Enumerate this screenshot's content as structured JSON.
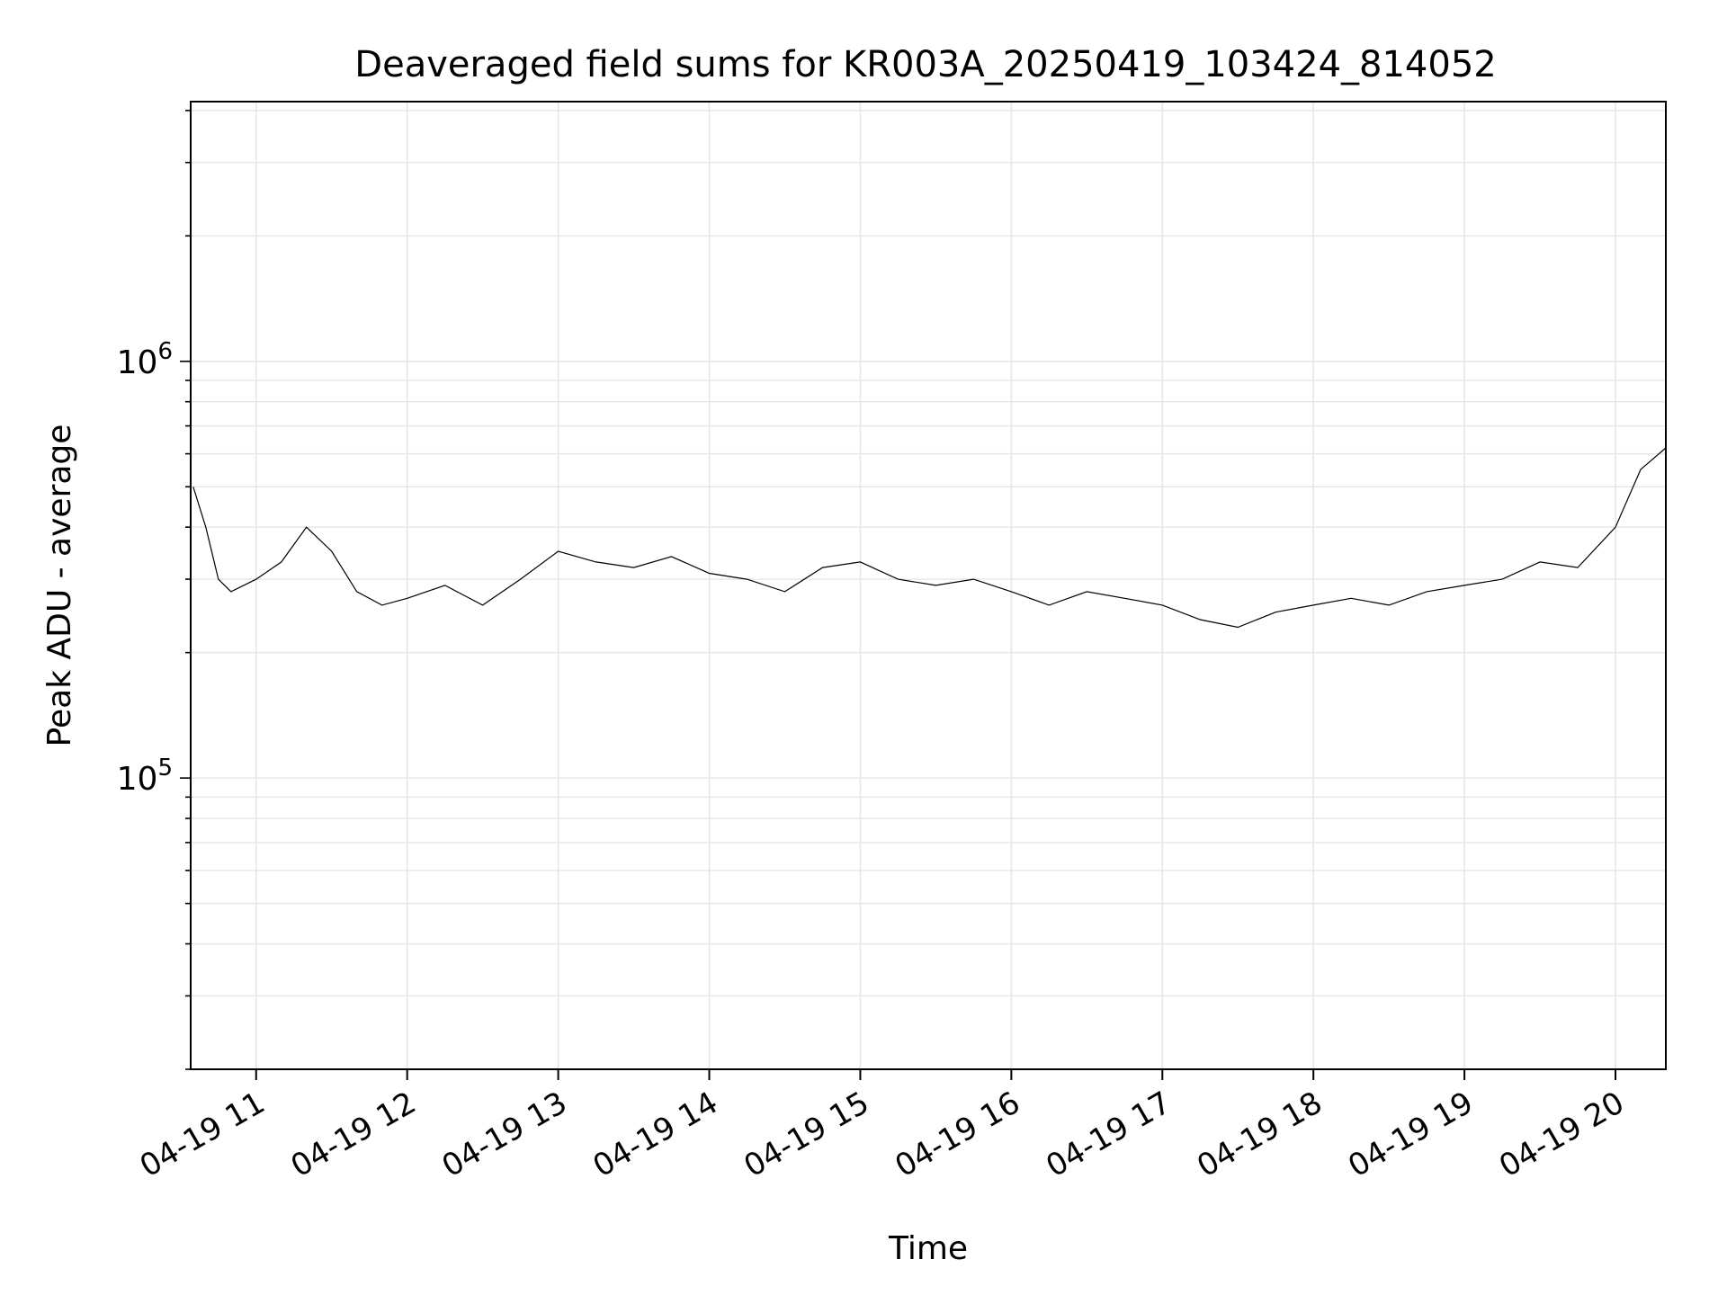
{
  "chart_data": {
    "type": "line",
    "title": "Deaveraged field sums for KR003A_20250419_103424_814052",
    "xlabel": "Time",
    "ylabel": "Peak ADU - average",
    "yscale": "log",
    "ylim": [
      20000,
      4200000
    ],
    "xlim": [
      "2025-04-19T10:34",
      "2025-04-19T20:20"
    ],
    "x_tick_labels": [
      "04-19 11",
      "04-19 12",
      "04-19 13",
      "04-19 14",
      "04-19 15",
      "04-19 16",
      "04-19 17",
      "04-19 18",
      "04-19 19",
      "04-19 20"
    ],
    "x_ticks": [
      "2025-04-19T11:00",
      "2025-04-19T12:00",
      "2025-04-19T13:00",
      "2025-04-19T14:00",
      "2025-04-19T15:00",
      "2025-04-19T16:00",
      "2025-04-19T17:00",
      "2025-04-19T18:00",
      "2025-04-19T19:00",
      "2025-04-19T20:00"
    ],
    "y_ticks": [
      {
        "value": 100000,
        "mantissa": "10",
        "exponent": "5"
      },
      {
        "value": 1000000,
        "mantissa": "10",
        "exponent": "6"
      }
    ],
    "grid": true,
    "legend": false,
    "line_color": "#000000",
    "grid_color": "#e6e6e6",
    "series": [
      {
        "x": [
          "2025-04-19T10:35",
          "2025-04-19T10:40",
          "2025-04-19T10:45",
          "2025-04-19T10:50",
          "2025-04-19T11:00",
          "2025-04-19T11:10",
          "2025-04-19T11:20",
          "2025-04-19T11:30",
          "2025-04-19T11:40",
          "2025-04-19T11:50",
          "2025-04-19T12:00",
          "2025-04-19T12:15",
          "2025-04-19T12:30",
          "2025-04-19T12:45",
          "2025-04-19T13:00",
          "2025-04-19T13:15",
          "2025-04-19T13:30",
          "2025-04-19T13:45",
          "2025-04-19T14:00",
          "2025-04-19T14:15",
          "2025-04-19T14:30",
          "2025-04-19T14:45",
          "2025-04-19T15:00",
          "2025-04-19T15:15",
          "2025-04-19T15:30",
          "2025-04-19T15:45",
          "2025-04-19T16:00",
          "2025-04-19T16:15",
          "2025-04-19T16:30",
          "2025-04-19T16:45",
          "2025-04-19T17:00",
          "2025-04-19T17:15",
          "2025-04-19T17:30",
          "2025-04-19T17:45",
          "2025-04-19T18:00",
          "2025-04-19T18:15",
          "2025-04-19T18:30",
          "2025-04-19T18:45",
          "2025-04-19T19:00",
          "2025-04-19T19:15",
          "2025-04-19T19:30",
          "2025-04-19T19:45",
          "2025-04-19T20:00",
          "2025-04-19T20:10",
          "2025-04-19T20:20"
        ],
        "y": [
          500000,
          400000,
          300000,
          280000,
          300000,
          330000,
          400000,
          350000,
          280000,
          260000,
          270000,
          290000,
          260000,
          300000,
          350000,
          330000,
          320000,
          340000,
          310000,
          300000,
          280000,
          320000,
          330000,
          300000,
          290000,
          300000,
          280000,
          260000,
          280000,
          270000,
          260000,
          240000,
          230000,
          250000,
          260000,
          270000,
          260000,
          280000,
          290000,
          300000,
          330000,
          320000,
          400000,
          550000,
          620000
        ]
      }
    ]
  }
}
